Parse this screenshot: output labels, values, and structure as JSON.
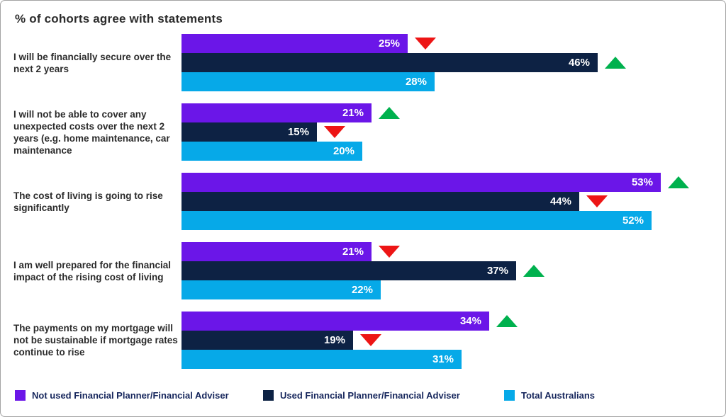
{
  "chart_data": {
    "type": "bar",
    "orientation": "horizontal",
    "title": "% of cohorts agree with statements",
    "value_suffix": "%",
    "axis_hidden": true,
    "grid": false,
    "legend_position": "bottom",
    "categories": [
      "I will be financially secure over the next 2 years",
      "I will not be able to cover any unexpected costs over the next 2 years (e.g. home maintenance, car maintenance",
      "The cost of living is going to rise significantly",
      "I am well prepared for the financial impact of the rising cost of living",
      "The payments on my mortgage will not be sustainable if mortgage rates continue to rise"
    ],
    "series": [
      {
        "name": "Not used Financial Planner/Financial Adviser",
        "color": "#6b16e8",
        "values": [
          25,
          21,
          53,
          21,
          34
        ],
        "trends": [
          "down",
          "up",
          "up",
          "down",
          "up"
        ]
      },
      {
        "name": "Used Financial Planner/Financial Adviser",
        "color": "#0d2244",
        "values": [
          46,
          15,
          44,
          37,
          19
        ],
        "trends": [
          "up",
          "down",
          "down",
          "up",
          "down"
        ]
      },
      {
        "name": "Total Australians",
        "color": "#06a9e8",
        "values": [
          28,
          20,
          52,
          22,
          31
        ],
        "trends": [
          null,
          null,
          null,
          null,
          null
        ]
      }
    ],
    "trend_colors": {
      "up": "#00b14e",
      "down": "#ed1515"
    },
    "value_range": [
      0,
      58
    ]
  }
}
